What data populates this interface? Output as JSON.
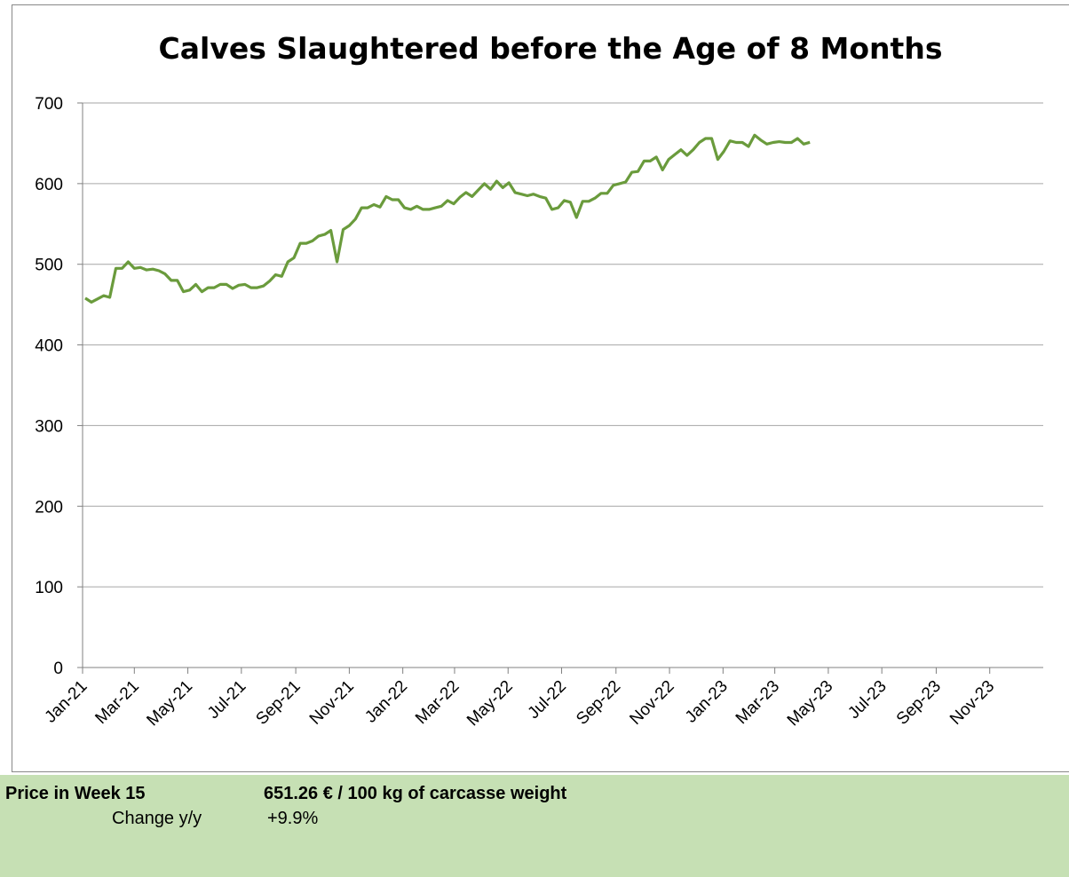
{
  "chart_data": {
    "type": "line",
    "title": "Calves Slaughtered before the Age of 8 Months",
    "x": [
      "2021-W01",
      "2021-W02",
      "2021-W03",
      "2021-W04",
      "2021-W05",
      "2021-W06",
      "2021-W07",
      "2021-W08",
      "2021-W09",
      "2021-W10",
      "2021-W11",
      "2021-W12",
      "2021-W13",
      "2021-W14",
      "2021-W15",
      "2021-W16",
      "2021-W17",
      "2021-W18",
      "2021-W19",
      "2021-W20",
      "2021-W21",
      "2021-W22",
      "2021-W23",
      "2021-W24",
      "2021-W25",
      "2021-W26",
      "2021-W27",
      "2021-W28",
      "2021-W29",
      "2021-W30",
      "2021-W31",
      "2021-W32",
      "2021-W33",
      "2021-W34",
      "2021-W35",
      "2021-W36",
      "2021-W37",
      "2021-W38",
      "2021-W39",
      "2021-W40",
      "2021-W41",
      "2021-W42",
      "2021-W43",
      "2021-W44",
      "2021-W45",
      "2021-W46",
      "2021-W47",
      "2021-W48",
      "2021-W49",
      "2021-W50",
      "2021-W51",
      "2021-W52",
      "2022-W01",
      "2022-W02",
      "2022-W03",
      "2022-W04",
      "2022-W05",
      "2022-W06",
      "2022-W07",
      "2022-W08",
      "2022-W09",
      "2022-W10",
      "2022-W11",
      "2022-W12",
      "2022-W13",
      "2022-W14",
      "2022-W15",
      "2022-W16",
      "2022-W17",
      "2022-W18",
      "2022-W19",
      "2022-W20",
      "2022-W21",
      "2022-W22",
      "2022-W23",
      "2022-W24",
      "2022-W25",
      "2022-W26",
      "2022-W27",
      "2022-W28",
      "2022-W29",
      "2022-W30",
      "2022-W31",
      "2022-W32",
      "2022-W33",
      "2022-W34",
      "2022-W35",
      "2022-W36",
      "2022-W37",
      "2022-W38",
      "2022-W39",
      "2022-W40",
      "2022-W41",
      "2022-W42",
      "2022-W43",
      "2022-W44",
      "2022-W45",
      "2022-W46",
      "2022-W47",
      "2022-W48",
      "2022-W49",
      "2022-W50",
      "2022-W51",
      "2022-W52",
      "2023-W01",
      "2023-W02",
      "2023-W03",
      "2023-W04",
      "2023-W05",
      "2023-W06",
      "2023-W07",
      "2023-W08",
      "2023-W09",
      "2023-W10",
      "2023-W11",
      "2023-W12",
      "2023-W13",
      "2023-W14",
      "2023-W15"
    ],
    "values": [
      458,
      453,
      457,
      461,
      459,
      495,
      495,
      503,
      495,
      496,
      493,
      494,
      492,
      488,
      480,
      480,
      466,
      468,
      475,
      466,
      471,
      471,
      475,
      475,
      470,
      474,
      475,
      471,
      471,
      473,
      479,
      487,
      485,
      503,
      508,
      526,
      526,
      529,
      535,
      537,
      542,
      503,
      543,
      548,
      556,
      570,
      570,
      574,
      571,
      584,
      580,
      580,
      570,
      568,
      572,
      568,
      568,
      570,
      572,
      579,
      575,
      583,
      589,
      584,
      592,
      600,
      593,
      603,
      595,
      601,
      589,
      587,
      585,
      587,
      584,
      582,
      568,
      570,
      579,
      577,
      558,
      578,
      578,
      582,
      588,
      588,
      598,
      600,
      602,
      614,
      615,
      628,
      628,
      633,
      617,
      630,
      636,
      642,
      635,
      642,
      651,
      656,
      656,
      630,
      640,
      653,
      651,
      651,
      646,
      660,
      654,
      649,
      651,
      652,
      651,
      651,
      656,
      649,
      651.26
    ],
    "color": "#6a9b3c",
    "xlim": [
      "2021-01",
      "2024-01"
    ],
    "xticks": [
      {
        "value": "2021-01",
        "label": "Jan-21"
      },
      {
        "value": "2021-03",
        "label": "Mar-21"
      },
      {
        "value": "2021-05",
        "label": "May-21"
      },
      {
        "value": "2021-07",
        "label": "Jul-21"
      },
      {
        "value": "2021-09",
        "label": "Sep-21"
      },
      {
        "value": "2021-11",
        "label": "Nov-21"
      },
      {
        "value": "2022-01",
        "label": "Jan-22"
      },
      {
        "value": "2022-03",
        "label": "Mar-22"
      },
      {
        "value": "2022-05",
        "label": "May-22"
      },
      {
        "value": "2022-07",
        "label": "Jul-22"
      },
      {
        "value": "2022-09",
        "label": "Sep-22"
      },
      {
        "value": "2022-11",
        "label": "Nov-22"
      },
      {
        "value": "2023-01",
        "label": "Jan-23"
      },
      {
        "value": "2023-03",
        "label": "Mar-23"
      },
      {
        "value": "2023-05",
        "label": "May-23"
      },
      {
        "value": "2023-07",
        "label": "Jul-23"
      },
      {
        "value": "2023-09",
        "label": "Sep-23"
      },
      {
        "value": "2023-11",
        "label": "Nov-23"
      }
    ],
    "ylim": [
      0,
      700
    ],
    "yticks": [
      0,
      100,
      200,
      300,
      400,
      500,
      600,
      700
    ],
    "grid": true
  },
  "footer": {
    "price_label": "Price in Week 15",
    "price": "651.26 € / 100 kg of carcasse weight",
    "change_label": "Change y/y",
    "change": "+9.9%"
  }
}
